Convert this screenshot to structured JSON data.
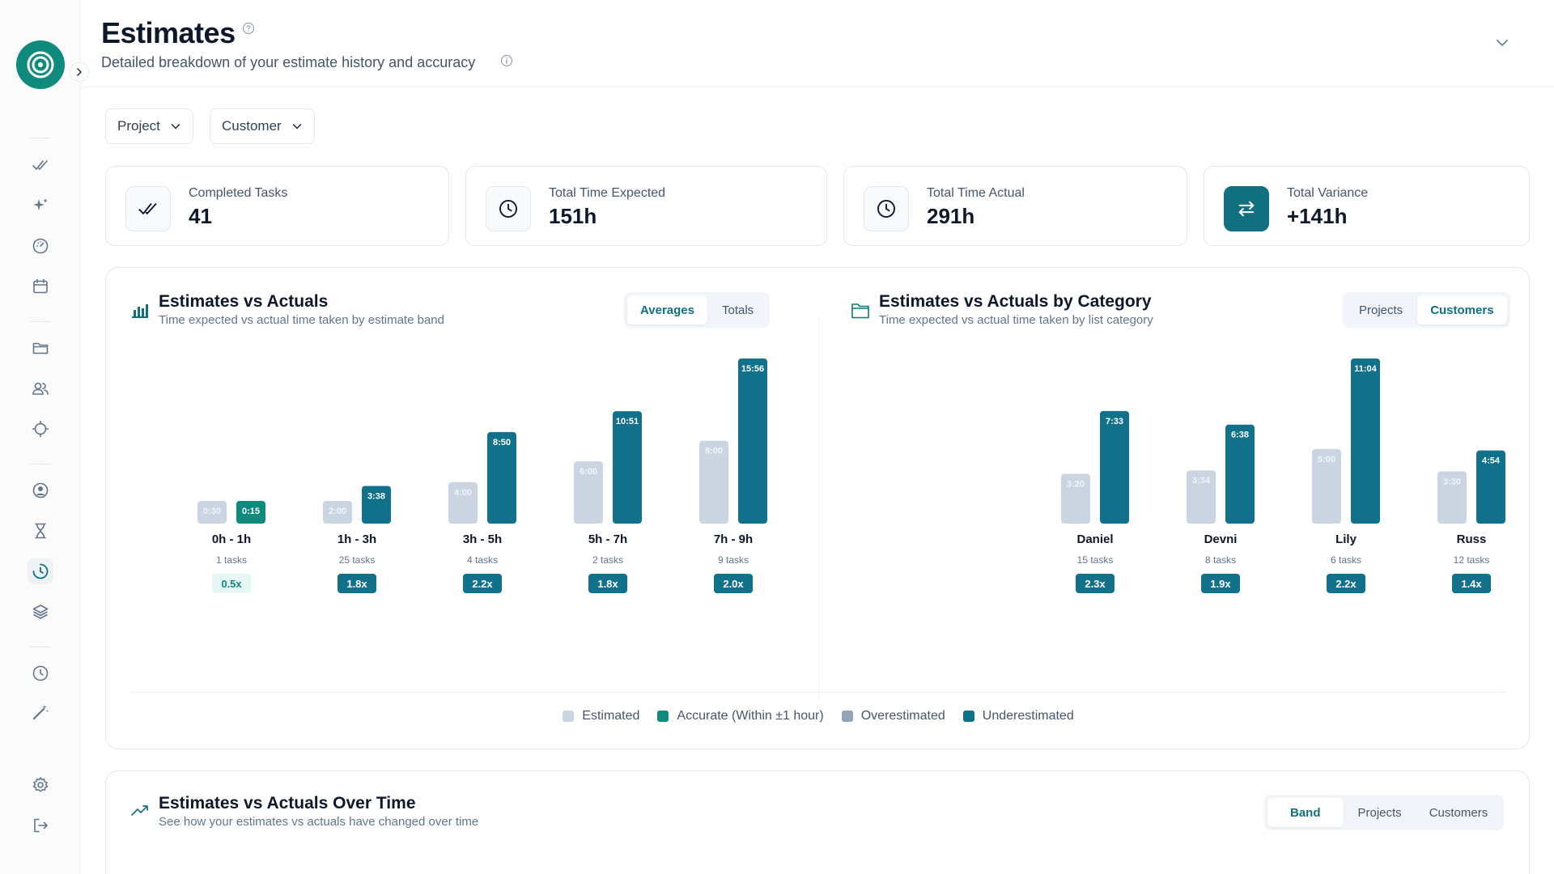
{
  "header": {
    "title": "Estimates",
    "subtitle": "Detailed breakdown of your estimate history and accuracy"
  },
  "filters": [
    {
      "label": "Project"
    },
    {
      "label": "Customer"
    }
  ],
  "stats": [
    {
      "label": "Completed Tasks",
      "value": "41",
      "icon": "double-check-icon"
    },
    {
      "label": "Total Time Expected",
      "value": "151h",
      "icon": "clock-icon"
    },
    {
      "label": "Total Time Actual",
      "value": "291h",
      "icon": "clock-icon"
    },
    {
      "label": "Total Variance",
      "value": "+141h",
      "icon": "swap-arrows-icon"
    }
  ],
  "colors": {
    "estimated": "#cbd5e1",
    "accurate": "#0f8a7d",
    "overestimated": "#94a3b8",
    "underestimated": "#12718a",
    "accent": "#11707f"
  },
  "band_section": {
    "title": "Estimates vs Actuals",
    "subtitle": "Time expected vs actual time taken by estimate band",
    "toggles": [
      "Averages",
      "Totals"
    ],
    "active_toggle": "Averages"
  },
  "category_section": {
    "title": "Estimates vs Actuals by Category",
    "subtitle": "Time expected vs actual time taken by list category",
    "toggles": [
      "Projects",
      "Customers"
    ],
    "active_toggle": "Customers"
  },
  "chart_data": [
    {
      "type": "bar",
      "categories": [
        "0h - 1h",
        "1h - 3h",
        "3h - 5h",
        "5h - 7h",
        "7h - 9h"
      ],
      "series": [
        {
          "name": "Estimated",
          "values": [
            0.5,
            2.0,
            4.0,
            6.0,
            8.0
          ],
          "labels": [
            "0:30",
            "2:00",
            "4:00",
            "6:00",
            "8:00"
          ]
        },
        {
          "name": "Actual",
          "values": [
            0.25,
            3.633,
            8.833,
            10.85,
            15.933
          ],
          "labels": [
            "0:15",
            "3:38",
            "8:50",
            "10:51",
            "15:56"
          ],
          "status": [
            "accurate",
            "underestimated",
            "underestimated",
            "underestimated",
            "underestimated"
          ]
        }
      ],
      "tasks": [
        "1 tasks",
        "25 tasks",
        "4 tasks",
        "2 tasks",
        "9 tasks"
      ],
      "ratios": [
        "0.5x",
        "1.8x",
        "2.2x",
        "1.8x",
        "2.0x"
      ],
      "ymax": 15.933
    },
    {
      "type": "bar",
      "categories": [
        "Daniel",
        "Devni",
        "Lily",
        "Russ"
      ],
      "series": [
        {
          "name": "Estimated",
          "values": [
            3.333,
            3.567,
            5.0,
            3.5
          ],
          "labels": [
            "3:20",
            "3:34",
            "5:00",
            "3:30"
          ]
        },
        {
          "name": "Actual",
          "values": [
            7.55,
            6.633,
            11.067,
            4.9
          ],
          "labels": [
            "7:33",
            "6:38",
            "11:04",
            "4:54"
          ],
          "status": [
            "underestimated",
            "underestimated",
            "underestimated",
            "underestimated"
          ]
        }
      ],
      "tasks": [
        "15 tasks",
        "8 tasks",
        "6 tasks",
        "12 tasks"
      ],
      "ratios": [
        "2.3x",
        "1.9x",
        "2.2x",
        "1.4x"
      ],
      "ymax": 11.067
    }
  ],
  "legend": [
    {
      "label": "Estimated",
      "color": "#cbd5e1"
    },
    {
      "label": "Accurate (Within ±1 hour)",
      "color": "#0f8a7d"
    },
    {
      "label": "Overestimated",
      "color": "#94a3b8"
    },
    {
      "label": "Underestimated",
      "color": "#12718a"
    }
  ],
  "over_time_section": {
    "title": "Estimates vs Actuals Over Time",
    "subtitle": "See how your estimates vs actuals have changed over time",
    "toggles": [
      "Band",
      "Projects",
      "Customers"
    ],
    "active_toggle": "Band"
  }
}
